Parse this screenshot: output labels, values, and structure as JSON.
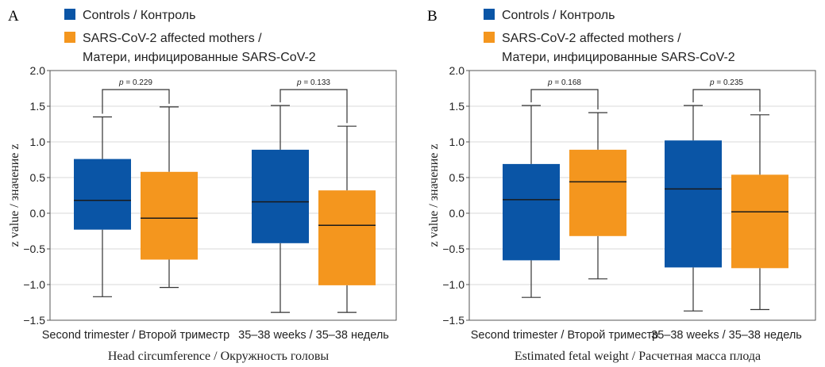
{
  "legend": {
    "placement": "top",
    "items": [
      {
        "label_lines": [
          "Controls / Контроль"
        ],
        "color": "#0a55a6"
      },
      {
        "label_lines": [
          "SARS-CoV-2 affected mothers /",
          "Матери, инфицированные SARS-CoV-2"
        ],
        "color": "#f4961e"
      }
    ]
  },
  "chart_data": [
    {
      "panel_label": "A",
      "type": "box",
      "xlabel": "Head circumference / Окружность головы",
      "ylabel": "z value / значение z",
      "ylim": [
        -1.5,
        2.0
      ],
      "yticks": [
        "2.0",
        "1.5",
        "1.0",
        "0.5",
        "0.0",
        "−0.5",
        "−1.0",
        "−1.5"
      ],
      "ytick_values": [
        2.0,
        1.5,
        1.0,
        0.5,
        0.0,
        -0.5,
        -1.0,
        -1.5
      ],
      "grid": true,
      "categories": [
        "Second trimester / Второй триместр",
        "35–38 weeks / 35–38 недель"
      ],
      "series": [
        {
          "name": "Controls / Контроль",
          "color": "#0a55a6",
          "boxes": [
            {
              "min": -1.17,
              "q1": -0.23,
              "median": 0.18,
              "q3": 0.76,
              "max": 1.35
            },
            {
              "min": -1.39,
              "q1": -0.42,
              "median": 0.16,
              "q3": 0.89,
              "max": 1.51
            }
          ]
        },
        {
          "name": "SARS-CoV-2 affected mothers / Матери, инфицированные SARS-CoV-2",
          "color": "#f4961e",
          "boxes": [
            {
              "min": -1.04,
              "q1": -0.65,
              "median": -0.07,
              "q3": 0.58,
              "max": 1.49
            },
            {
              "min": -1.39,
              "q1": -1.01,
              "median": -0.17,
              "q3": 0.32,
              "max": 1.22
            }
          ]
        }
      ],
      "annotations": [
        {
          "category_index": 0,
          "text": "p = 0.229"
        },
        {
          "category_index": 1,
          "text": "p = 0.133"
        }
      ]
    },
    {
      "panel_label": "B",
      "type": "box",
      "xlabel": "Estimated fetal weight / Расчетная масса плода",
      "ylabel": "z value / значение z",
      "ylim": [
        -1.5,
        2.0
      ],
      "yticks": [
        "2.0",
        "1.5",
        "1.0",
        "0.5",
        "0.0",
        "−0.5",
        "−1.0",
        "−1.5"
      ],
      "ytick_values": [
        2.0,
        1.5,
        1.0,
        0.5,
        0.0,
        -0.5,
        -1.0,
        -1.5
      ],
      "grid": true,
      "categories": [
        "Second trimester / Второй триместр",
        "35–38 weeks / 35–38 недель"
      ],
      "series": [
        {
          "name": "Controls / Контроль",
          "color": "#0a55a6",
          "boxes": [
            {
              "min": -1.18,
              "q1": -0.66,
              "median": 0.19,
              "q3": 0.69,
              "max": 1.51
            },
            {
              "min": -1.37,
              "q1": -0.76,
              "median": 0.34,
              "q3": 1.02,
              "max": 1.51
            }
          ]
        },
        {
          "name": "SARS-CoV-2 affected mothers / Матери, инфицированные SARS-CoV-2",
          "color": "#f4961e",
          "boxes": [
            {
              "min": -0.92,
              "q1": -0.32,
              "median": 0.44,
              "q3": 0.89,
              "max": 1.41
            },
            {
              "min": -1.35,
              "q1": -0.77,
              "median": 0.02,
              "q3": 0.54,
              "max": 1.38
            }
          ]
        }
      ],
      "annotations": [
        {
          "category_index": 0,
          "text": "p = 0.168"
        },
        {
          "category_index": 1,
          "text": "p = 0.235"
        }
      ]
    }
  ]
}
